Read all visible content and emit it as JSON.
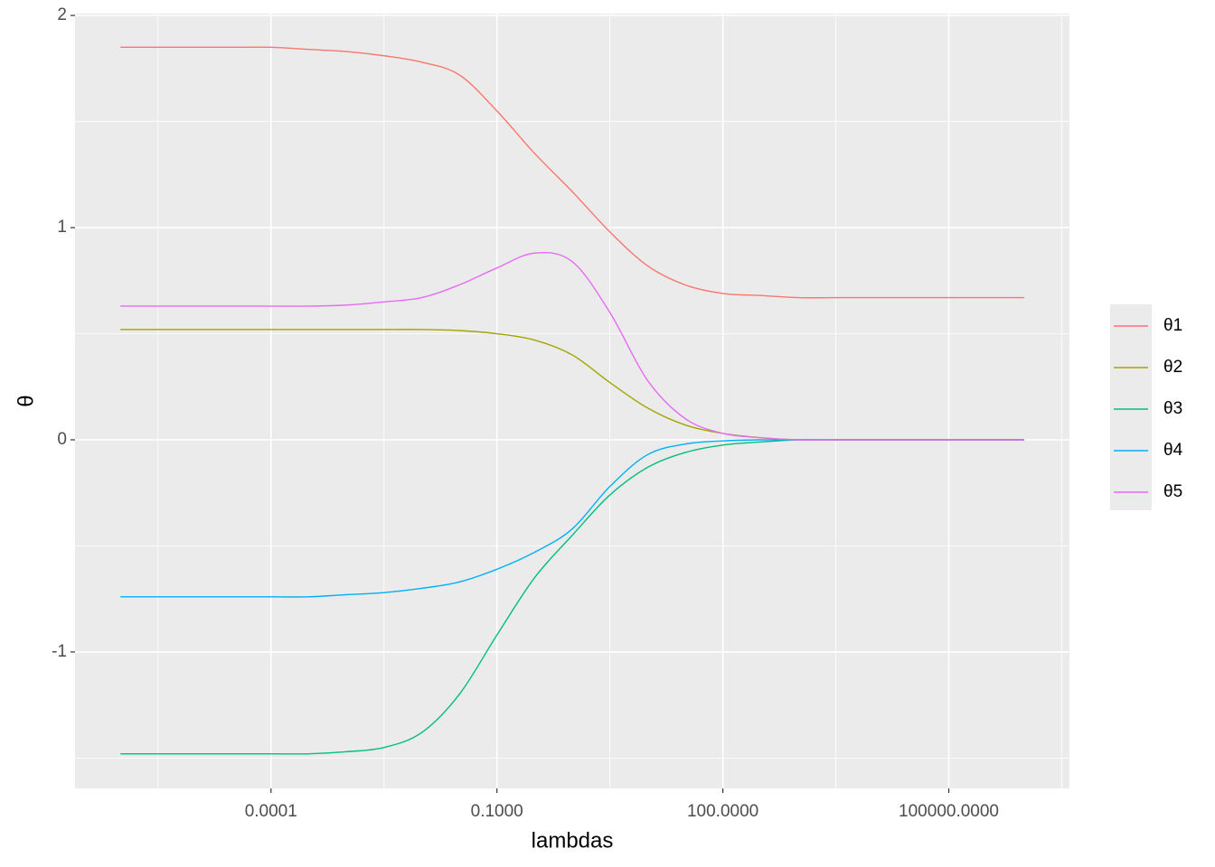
{
  "chart_data": {
    "type": "line",
    "xlabel": "lambdas",
    "ylabel": "θ",
    "x": [
      1e-06,
      3.16e-06,
      1e-05,
      3.16e-05,
      0.0001,
      0.000316,
      0.001,
      0.00316,
      0.01,
      0.0316,
      0.1,
      0.316,
      1,
      3.16,
      10,
      31.6,
      100,
      316,
      1000,
      3160,
      10000,
      31600,
      100000,
      316000,
      1000000
    ],
    "series": [
      {
        "name": "θ1",
        "color": "#F8766D",
        "values": [
          1.85,
          1.85,
          1.85,
          1.85,
          1.85,
          1.84,
          1.83,
          1.81,
          1.78,
          1.72,
          1.55,
          1.35,
          1.17,
          0.98,
          0.82,
          0.73,
          0.69,
          0.68,
          0.67,
          0.67,
          0.67,
          0.67,
          0.67,
          0.67,
          0.67
        ]
      },
      {
        "name": "θ2",
        "color": "#A3A500",
        "values": [
          0.52,
          0.52,
          0.52,
          0.52,
          0.52,
          0.52,
          0.52,
          0.52,
          0.52,
          0.515,
          0.5,
          0.47,
          0.4,
          0.27,
          0.15,
          0.07,
          0.03,
          0.01,
          0,
          0,
          0,
          0,
          0,
          0,
          0
        ]
      },
      {
        "name": "θ3",
        "color": "#00BF7D",
        "values": [
          -1.48,
          -1.48,
          -1.48,
          -1.48,
          -1.48,
          -1.48,
          -1.47,
          -1.45,
          -1.38,
          -1.2,
          -0.92,
          -0.65,
          -0.45,
          -0.26,
          -0.13,
          -0.06,
          -0.025,
          -0.01,
          0,
          0,
          0,
          0,
          0,
          0,
          0
        ]
      },
      {
        "name": "θ4",
        "color": "#00B0F6",
        "values": [
          -0.74,
          -0.74,
          -0.74,
          -0.74,
          -0.74,
          -0.74,
          -0.73,
          -0.72,
          -0.7,
          -0.67,
          -0.61,
          -0.53,
          -0.42,
          -0.22,
          -0.07,
          -0.02,
          -0.005,
          0,
          0,
          0,
          0,
          0,
          0,
          0,
          0
        ]
      },
      {
        "name": "θ5",
        "color": "#E76BF3",
        "values": [
          0.63,
          0.63,
          0.63,
          0.63,
          0.63,
          0.63,
          0.635,
          0.65,
          0.67,
          0.73,
          0.81,
          0.88,
          0.84,
          0.6,
          0.28,
          0.1,
          0.03,
          0.01,
          0,
          0,
          0,
          0,
          0,
          0,
          0
        ]
      }
    ],
    "xscale": "log",
    "xlim": [
      2.5e-07,
      4000000.0
    ],
    "xticks": [
      {
        "value": 0.0001,
        "label": "0.0001"
      },
      {
        "value": 0.1,
        "label": "0.1000"
      },
      {
        "value": 100,
        "label": "100.0000"
      },
      {
        "value": 100000,
        "label": "100000.0000"
      }
    ],
    "xminor": [
      3.16e-06,
      0.00316,
      3.16,
      3162,
      3162278
    ],
    "ylim": [
      -1.643,
      2.009
    ],
    "yticks": [
      -1,
      0,
      1,
      2
    ],
    "yminor": [
      -1.5,
      -0.5,
      0.5,
      1.5
    ],
    "grid": true
  }
}
